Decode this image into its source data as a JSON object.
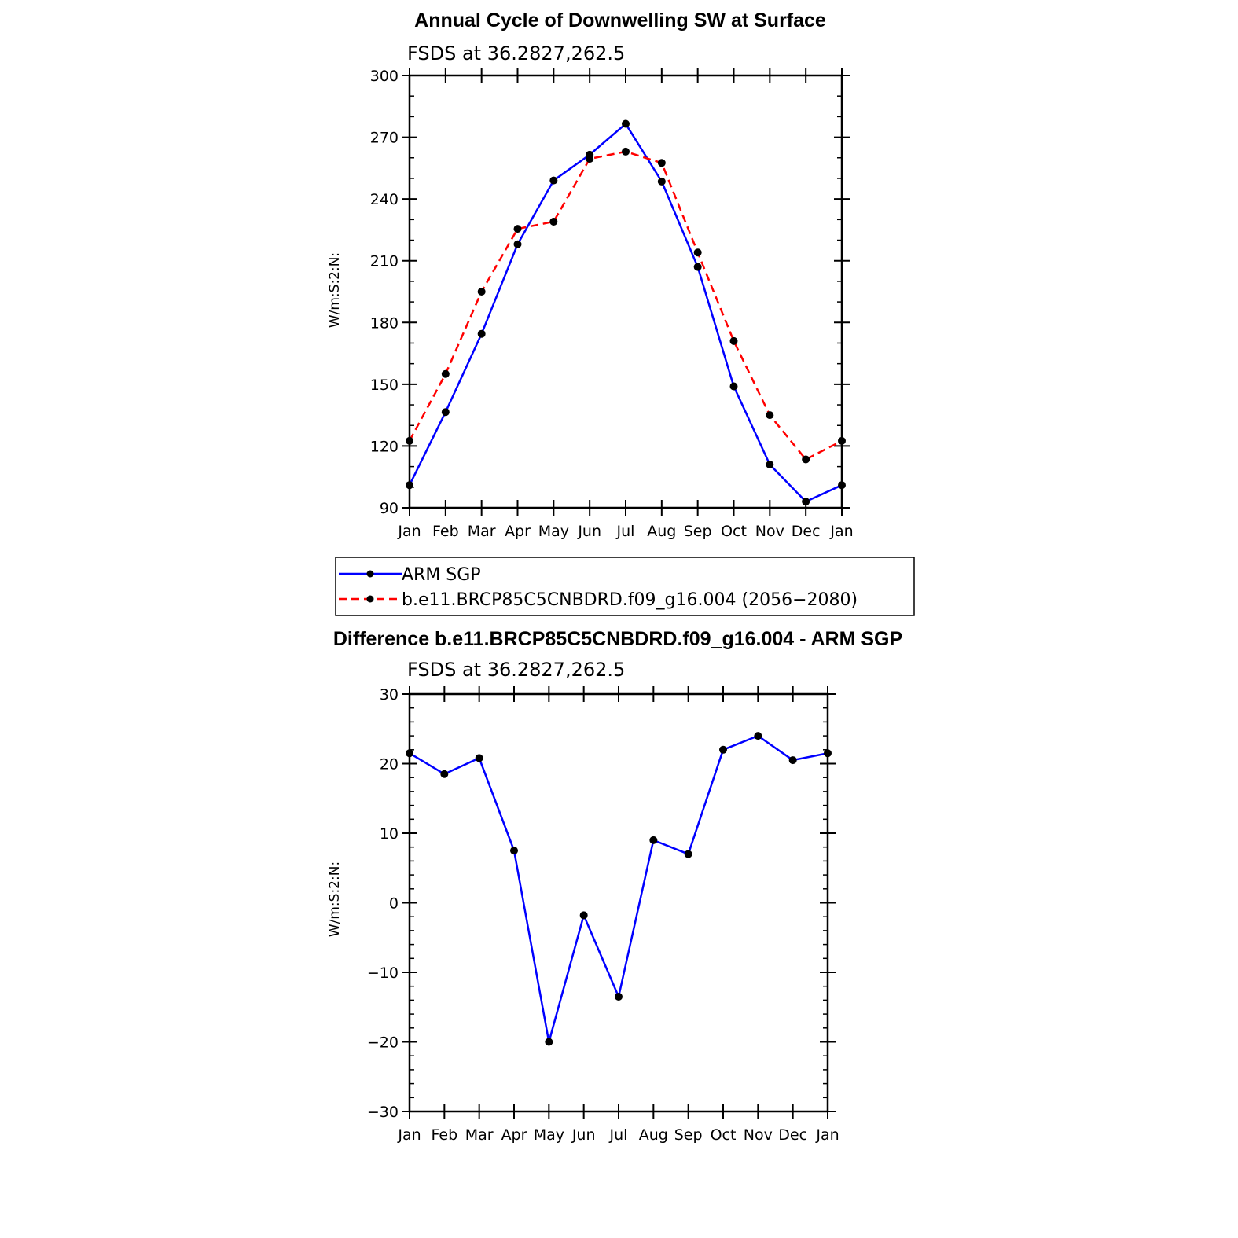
{
  "chart_data": [
    {
      "type": "line",
      "title": "Annual Cycle of Downwelling SW at Surface",
      "subtitle": "FSDS at 36.2827,262.5",
      "ylabel": "W/m:S:2:N:",
      "xlabel": "",
      "categories": [
        "Jan",
        "Feb",
        "Mar",
        "Apr",
        "May",
        "Jun",
        "Jul",
        "Aug",
        "Sep",
        "Oct",
        "Nov",
        "Dec",
        "Jan"
      ],
      "ylim": [
        90,
        300
      ],
      "yticks": [
        "90",
        "120",
        "150",
        "180",
        "210",
        "240",
        "270",
        "300"
      ],
      "legend_position": "below",
      "series": [
        {
          "name": "ARM SGP",
          "color": "#0000ff",
          "dash": "solid",
          "values": [
            101,
            136.5,
            174.5,
            218,
            249,
            261.5,
            276.5,
            248.5,
            207,
            149,
            111,
            93,
            101
          ]
        },
        {
          "name": "b.e11.BRCP85C5CNBDRD.f09_g16.004 (2056−2080)",
          "color": "#ff0000",
          "dash": "dashed",
          "values": [
            122.5,
            155,
            195,
            225.5,
            229,
            259.5,
            263,
            257.5,
            214,
            171,
            135,
            113.5,
            122.5
          ]
        }
      ]
    },
    {
      "type": "line",
      "title": "Difference b.e11.BRCP85C5CNBDRD.f09_g16.004 - ARM SGP",
      "subtitle": "FSDS at 36.2827,262.5",
      "ylabel": "W/m:S:2:N:",
      "xlabel": "",
      "categories": [
        "Jan",
        "Feb",
        "Mar",
        "Apr",
        "May",
        "Jun",
        "Jul",
        "Aug",
        "Sep",
        "Oct",
        "Nov",
        "Dec",
        "Jan"
      ],
      "ylim": [
        -30,
        30
      ],
      "yticks": [
        "−30",
        "−20",
        "−10",
        "0",
        "10",
        "20",
        "30"
      ],
      "series": [
        {
          "color": "#0000ff",
          "dash": "solid",
          "values": [
            21.5,
            18.5,
            20.8,
            7.5,
            -20,
            -1.8,
            -13.5,
            9,
            7,
            22,
            24,
            20.5,
            21.5
          ]
        }
      ]
    }
  ]
}
